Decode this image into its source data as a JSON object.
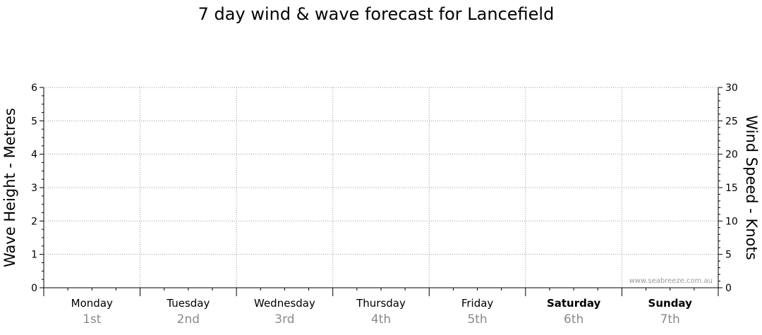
{
  "chart_data": {
    "type": "line",
    "title": "7 day wind & wave forecast for Lancefield",
    "ylabel_left": "Wave Height - Metres",
    "ylabel_right": "Wind Speed - Knots",
    "ylim_left": [
      0,
      6
    ],
    "ylim_right": [
      0,
      30
    ],
    "left_ticks": [
      "0",
      "1",
      "2",
      "3",
      "4",
      "5",
      "6"
    ],
    "right_ticks": [
      "0",
      "5",
      "10",
      "15",
      "20",
      "25",
      "30"
    ],
    "days": [
      {
        "name": "Monday",
        "date": "1st",
        "weekend": false
      },
      {
        "name": "Tuesday",
        "date": "2nd",
        "weekend": false
      },
      {
        "name": "Wednesday",
        "date": "3rd",
        "weekend": false
      },
      {
        "name": "Thursday",
        "date": "4th",
        "weekend": false
      },
      {
        "name": "Friday",
        "date": "5th",
        "weekend": false
      },
      {
        "name": "Saturday",
        "date": "6th",
        "weekend": true
      },
      {
        "name": "Sunday",
        "date": "7th",
        "weekend": true
      }
    ],
    "series": [],
    "grid": true,
    "watermark": "www.seabreeze.com.au"
  }
}
